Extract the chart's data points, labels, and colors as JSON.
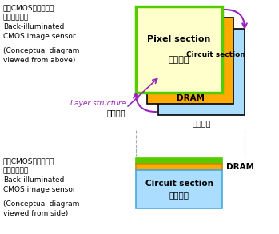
{
  "bg_color": "#ffffff",
  "colors": {
    "pixel_fill": "#ffffcc",
    "pixel_border": "#55cc00",
    "dram_fill": "#ffaa00",
    "circuit_fill": "#aaddff",
    "circuit_border": "#44aadd",
    "green_solid": "#55cc00",
    "purple": "#9922bb",
    "black": "#000000",
    "gray_dash": "#aaaaaa"
  },
  "top_left_lines": [
    [
      "背照",
      "CMOS",
      "影像传感器"
    ],
    [
      "（上方视图）"
    ],
    [
      "Back-illuminated"
    ],
    [
      "CMOS image sensor"
    ],
    [
      ""
    ],
    [
      "(Conceptual diagram"
    ],
    [
      "viewed from above)"
    ]
  ],
  "bottom_left_lines": [
    [
      "背照",
      "CMOS",
      "影像传感器"
    ],
    [
      "（侧面视图）"
    ],
    [
      "Back-illuminated"
    ],
    [
      "CMOS image sensor"
    ],
    [
      "(Conceptual diagram"
    ],
    [
      "viewed from side)"
    ]
  ],
  "layer_structure_en": "Layer structure",
  "layer_structure_cn": "分层结构",
  "dianlu_label": "电路模块",
  "dram_label": "DRAM",
  "pixel_en": "Pixel section",
  "pixel_cn": "像素模块",
  "circuit_en": "Circuit section",
  "circuit_cn": "电路模块"
}
